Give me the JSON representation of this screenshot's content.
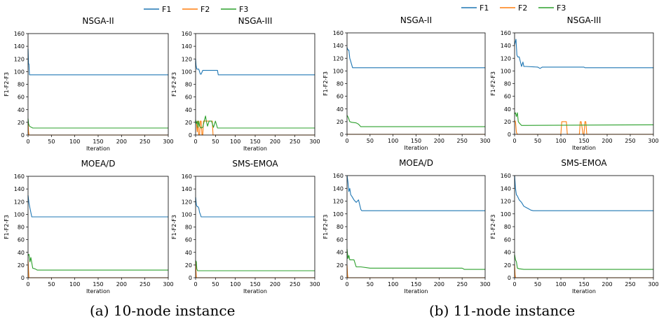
{
  "captions": [
    "(a) 10-node instance",
    "(b) 11-node instance"
  ],
  "legend": [
    {
      "name": "F1",
      "color": "#1f77b4"
    },
    {
      "name": "F2",
      "color": "#ff7f0e"
    },
    {
      "name": "F3",
      "color": "#2ca02c"
    }
  ],
  "chart_data": [
    {
      "type": "line",
      "panel": "a",
      "title": "NSGA-II",
      "xlabel": "Iteration",
      "ylabel": "F1-F2-F3",
      "xlim": [
        0,
        300
      ],
      "ylim": [
        0,
        160
      ],
      "xticks": [
        0,
        50,
        100,
        150,
        200,
        250,
        300
      ],
      "yticks": [
        0,
        20,
        40,
        60,
        80,
        100,
        120,
        140,
        160
      ],
      "series": [
        {
          "name": "F1",
          "x": [
            0,
            1,
            2,
            3,
            300
          ],
          "y": [
            136,
            112,
            112,
            95,
            95
          ]
        },
        {
          "name": "F2",
          "x": [
            0,
            1,
            2,
            300
          ],
          "y": [
            20,
            5,
            0,
            0
          ]
        },
        {
          "name": "F3",
          "x": [
            0,
            1,
            3,
            5,
            10,
            300
          ],
          "y": [
            26,
            18,
            14,
            13,
            11,
            11
          ]
        }
      ]
    },
    {
      "type": "line",
      "panel": "a",
      "title": "NSGA-III",
      "xlabel": "Iteration",
      "ylabel": "F1-F2-F3",
      "xlim": [
        0,
        300
      ],
      "ylim": [
        0,
        160
      ],
      "xticks": [
        0,
        50,
        100,
        150,
        200,
        250,
        300
      ],
      "yticks": [
        0,
        20,
        40,
        60,
        80,
        100,
        120,
        140,
        160
      ],
      "series": [
        {
          "name": "F1",
          "x": [
            0,
            1,
            3,
            6,
            8,
            12,
            14,
            18,
            22,
            55,
            57,
            300
          ],
          "y": [
            120,
            110,
            104,
            104,
            104,
            96,
            96,
            102,
            102,
            102,
            95,
            95
          ]
        },
        {
          "name": "F2",
          "x": [
            0,
            2,
            4,
            6,
            8,
            10,
            12,
            14,
            16,
            18,
            20,
            22,
            24,
            30,
            38,
            42,
            44,
            46,
            300
          ],
          "y": [
            22,
            20,
            5,
            22,
            0,
            0,
            22,
            22,
            0,
            0,
            22,
            22,
            22,
            22,
            22,
            22,
            0,
            0,
            0
          ]
        },
        {
          "name": "F3",
          "x": [
            0,
            2,
            4,
            6,
            8,
            10,
            14,
            18,
            22,
            25,
            27,
            30,
            34,
            40,
            45,
            50,
            55,
            300
          ],
          "y": [
            24,
            18,
            22,
            12,
            22,
            14,
            11,
            12,
            23,
            30,
            22,
            14,
            22,
            22,
            12,
            22,
            11,
            11
          ]
        }
      ]
    },
    {
      "type": "line",
      "panel": "a",
      "title": "MOEA/D",
      "xlabel": "Iteration",
      "ylabel": "F1-F2-F3",
      "xlim": [
        0,
        300
      ],
      "ylim": [
        0,
        160
      ],
      "xticks": [
        0,
        50,
        100,
        150,
        200,
        250,
        300
      ],
      "yticks": [
        0,
        20,
        40,
        60,
        80,
        100,
        120,
        140,
        160
      ],
      "series": [
        {
          "name": "F1",
          "x": [
            0,
            2,
            4,
            6,
            8,
            300
          ],
          "y": [
            130,
            118,
            110,
            103,
            96,
            96
          ]
        },
        {
          "name": "F2",
          "x": [
            0,
            1,
            2,
            300
          ],
          "y": [
            28,
            12,
            0,
            0
          ]
        },
        {
          "name": "F3",
          "x": [
            0,
            2,
            4,
            6,
            10,
            15,
            20,
            300
          ],
          "y": [
            35,
            37,
            25,
            32,
            15,
            14,
            12,
            12
          ]
        }
      ]
    },
    {
      "type": "line",
      "panel": "a",
      "title": "SMS-EMOA",
      "xlabel": "Iteration",
      "ylabel": "F1-F2-F3",
      "xlim": [
        0,
        300
      ],
      "ylim": [
        0,
        160
      ],
      "xticks": [
        0,
        50,
        100,
        150,
        200,
        250,
        300
      ],
      "yticks": [
        0,
        20,
        40,
        60,
        80,
        100,
        120,
        140,
        160
      ],
      "series": [
        {
          "name": "F1",
          "x": [
            0,
            2,
            4,
            6,
            8,
            10,
            12,
            14,
            300
          ],
          "y": [
            127,
            115,
            112,
            112,
            110,
            103,
            100,
            96,
            96
          ]
        },
        {
          "name": "F2",
          "x": [
            0,
            1,
            2,
            300
          ],
          "y": [
            25,
            10,
            0,
            0
          ]
        },
        {
          "name": "F3",
          "x": [
            0,
            2,
            3,
            5,
            300
          ],
          "y": [
            27,
            25,
            14,
            11,
            11
          ]
        }
      ]
    },
    {
      "type": "line",
      "panel": "b",
      "title": "NSGA-II",
      "xlabel": "Iteration",
      "ylabel": "F1-F2-F3",
      "xlim": [
        0,
        300
      ],
      "ylim": [
        0,
        160
      ],
      "xticks": [
        0,
        50,
        100,
        150,
        200,
        250,
        300
      ],
      "yticks": [
        0,
        20,
        40,
        60,
        80,
        100,
        120,
        140,
        160
      ],
      "series": [
        {
          "name": "F1",
          "x": [
            0,
            2,
            4,
            6,
            8,
            10,
            12,
            300
          ],
          "y": [
            137,
            133,
            133,
            120,
            115,
            110,
            105,
            105
          ]
        },
        {
          "name": "F2",
          "x": [
            0,
            1,
            2,
            300
          ],
          "y": [
            0,
            0,
            0,
            0
          ]
        },
        {
          "name": "F3",
          "x": [
            0,
            3,
            6,
            10,
            20,
            25,
            30,
            300
          ],
          "y": [
            30,
            26,
            20,
            19,
            18,
            16,
            12,
            12
          ]
        }
      ]
    },
    {
      "type": "line",
      "panel": "b",
      "title": "NSGA-III",
      "xlabel": "Iteration",
      "ylabel": "F1-F2-F3",
      "xlim": [
        0,
        300
      ],
      "ylim": [
        0,
        160
      ],
      "xticks": [
        0,
        50,
        100,
        150,
        200,
        250,
        300
      ],
      "yticks": [
        0,
        20,
        40,
        60,
        80,
        100,
        120,
        140,
        160
      ],
      "series": [
        {
          "name": "F1",
          "x": [
            0,
            3,
            5,
            7,
            10,
            15,
            18,
            20,
            25,
            50,
            55,
            60,
            150,
            152,
            300
          ],
          "y": [
            141,
            150,
            125,
            122,
            122,
            107,
            114,
            107,
            107,
            106,
            104,
            106,
            106,
            105,
            105
          ]
        },
        {
          "name": "F2",
          "x": [
            0,
            2,
            4,
            6,
            100,
            102,
            112,
            114,
            140,
            142,
            144,
            148,
            150,
            152,
            154,
            156,
            158,
            160,
            300
          ],
          "y": [
            22,
            20,
            3,
            0,
            0,
            20,
            20,
            0,
            0,
            20,
            20,
            0,
            0,
            20,
            20,
            0,
            0,
            0,
            0
          ]
        },
        {
          "name": "F3",
          "x": [
            0,
            2,
            4,
            6,
            8,
            10,
            15,
            300
          ],
          "y": [
            32,
            34,
            28,
            34,
            20,
            18,
            14,
            15
          ]
        }
      ]
    },
    {
      "type": "line",
      "panel": "b",
      "title": "MOEA/D",
      "xlabel": "Iteration",
      "ylabel": "F1-F2-F3",
      "xlim": [
        0,
        300
      ],
      "ylim": [
        0,
        160
      ],
      "xticks": [
        0,
        50,
        100,
        150,
        200,
        250,
        300
      ],
      "yticks": [
        0,
        20,
        40,
        60,
        80,
        100,
        120,
        140,
        160
      ],
      "series": [
        {
          "name": "F1",
          "x": [
            0,
            2,
            4,
            6,
            8,
            10,
            15,
            20,
            25,
            30,
            32,
            300
          ],
          "y": [
            160,
            150,
            135,
            140,
            130,
            128,
            122,
            118,
            122,
            107,
            105,
            105
          ]
        },
        {
          "name": "F2",
          "x": [
            0,
            1,
            2,
            300
          ],
          "y": [
            20,
            5,
            0,
            0
          ]
        },
        {
          "name": "F3",
          "x": [
            0,
            2,
            4,
            6,
            10,
            15,
            20,
            30,
            50,
            250,
            255,
            300
          ],
          "y": [
            45,
            30,
            35,
            28,
            28,
            28,
            17,
            17,
            15,
            15,
            13,
            13
          ]
        }
      ]
    },
    {
      "type": "line",
      "panel": "b",
      "title": "SMS-EMOA",
      "xlabel": "Iteration",
      "ylabel": "F1-F2-F3",
      "xlim": [
        0,
        300
      ],
      "ylim": [
        0,
        160
      ],
      "xticks": [
        0,
        50,
        100,
        150,
        200,
        250,
        300
      ],
      "yticks": [
        0,
        20,
        40,
        60,
        80,
        100,
        120,
        140,
        160
      ],
      "series": [
        {
          "name": "F1",
          "x": [
            0,
            2,
            4,
            6,
            10,
            15,
            20,
            25,
            30,
            35,
            40,
            300
          ],
          "y": [
            160,
            140,
            130,
            128,
            122,
            118,
            112,
            110,
            108,
            106,
            105,
            105
          ]
        },
        {
          "name": "F2",
          "x": [
            0,
            1,
            2,
            300
          ],
          "y": [
            20,
            5,
            0,
            0
          ]
        },
        {
          "name": "F3",
          "x": [
            0,
            2,
            4,
            6,
            10,
            20,
            300
          ],
          "y": [
            36,
            28,
            25,
            15,
            14,
            13,
            13
          ]
        }
      ]
    }
  ]
}
